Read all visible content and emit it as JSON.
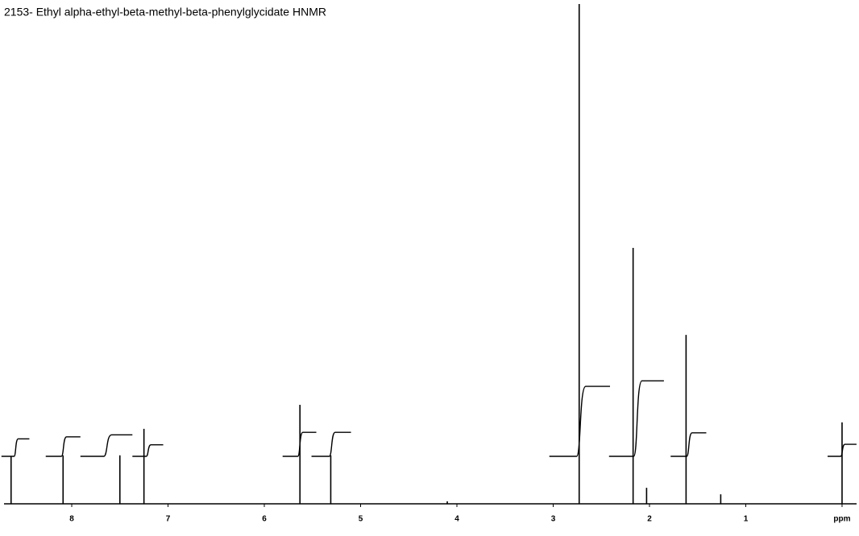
{
  "chart_data": {
    "type": "spectrum",
    "title": "2153- Ethyl alpha-ethyl-beta-methyl-beta-phenylglycidate HNMR",
    "x": [
      8.63,
      8.09,
      7.5,
      7.25,
      5.63,
      5.31,
      4.1,
      2.73,
      2.17,
      2.03,
      1.62,
      1.26,
      0.0
    ],
    "values": [
      9.5,
      9.7,
      9.7,
      15,
      19.8,
      9.7,
      0.5,
      100,
      51.2,
      3.2,
      33.8,
      1.9,
      16.3
    ],
    "integrals": [
      {
        "start": 8.73,
        "end": 8.44,
        "base": 9.5,
        "rise": 3.5
      },
      {
        "start": 8.27,
        "end": 7.91,
        "base": 9.5,
        "rise": 3.9
      },
      {
        "start": 7.91,
        "end": 7.37,
        "base": 9.5,
        "rise": 4.3
      },
      {
        "start": 7.37,
        "end": 7.05,
        "base": 9.5,
        "rise": 2.3
      },
      {
        "start": 5.81,
        "end": 5.46,
        "base": 9.5,
        "rise": 4.8
      },
      {
        "start": 5.51,
        "end": 5.1,
        "base": 9.5,
        "rise": 4.8
      },
      {
        "start": 3.04,
        "end": 2.41,
        "base": 9.5,
        "rise": 14.0
      },
      {
        "start": 2.42,
        "end": 1.85,
        "base": 9.5,
        "rise": 15.1
      },
      {
        "start": 1.78,
        "end": 1.41,
        "base": 9.5,
        "rise": 4.7
      },
      {
        "start": 0.15,
        "end": -0.15,
        "base": 9.5,
        "rise": 2.4
      }
    ],
    "color": "#000000",
    "xlim": [
      8.745,
      -0.176
    ],
    "ylim": [
      0,
      100
    ],
    "xticks": [
      8,
      7,
      6,
      5,
      4,
      3,
      2,
      1,
      {
        "value": 0,
        "label": "ppm"
      }
    ]
  }
}
